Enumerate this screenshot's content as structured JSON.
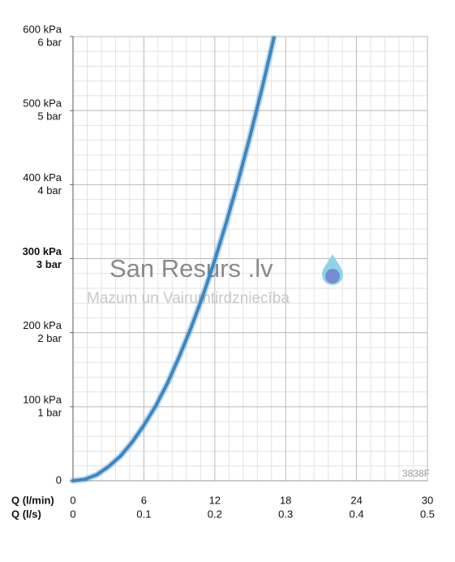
{
  "chart_data": {
    "type": "line",
    "xlabel": "Q (l/min)",
    "x2label": "Q (l/s)",
    "x": [
      0,
      1,
      2,
      3,
      4,
      5,
      6,
      7,
      8,
      9,
      10,
      11,
      12,
      13,
      14,
      15,
      16,
      17
    ],
    "series": [
      {
        "color": "#3a87c3",
        "values": [
          0,
          2,
          8,
          19,
          33,
          52,
          75,
          101,
          132,
          168,
          207,
          250,
          298,
          350,
          406,
          466,
          530,
          598
        ]
      }
    ],
    "xlim": [
      0,
      30
    ],
    "xticks": [
      0,
      6,
      12,
      18,
      24,
      30
    ],
    "x2lim": [
      0,
      0.5
    ],
    "x2ticks": [
      0,
      0.1,
      0.2,
      0.3,
      0.4,
      0.5
    ],
    "ylim": [
      0,
      600
    ],
    "yticks": [
      0,
      {
        "value": 100,
        "label": "100 kPa"
      },
      {
        "value": 200,
        "label": "200 kPa"
      },
      {
        "value": 300,
        "label": "300 kPa"
      },
      {
        "value": 400,
        "label": "400 kPa"
      },
      {
        "value": 500,
        "label": "500 kPa"
      },
      {
        "value": 600,
        "label": "600 kPa"
      }
    ],
    "ytick_bar_labels": [
      null,
      "1 bar",
      "2 bar",
      "3 bar",
      "4 bar",
      "5 bar",
      "6 bar"
    ],
    "highlight_ytick": 300,
    "grid": true,
    "minor_grid": true,
    "watermark": "San Resurs .lv",
    "watermark_subtitle": "Mazum un Vairumtirdzniecība",
    "code": "3838F"
  }
}
